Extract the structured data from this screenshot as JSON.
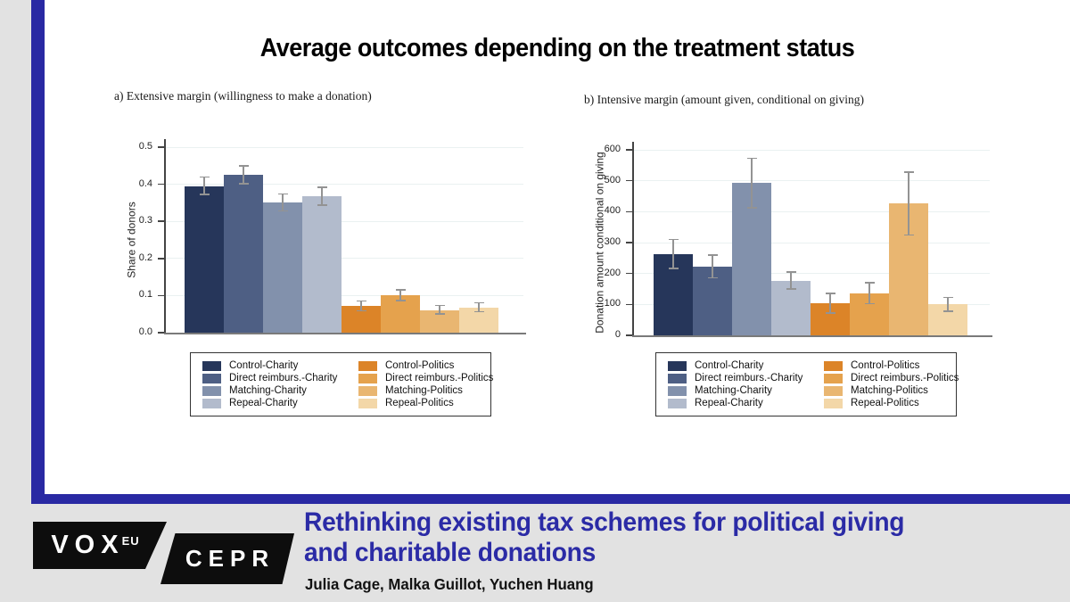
{
  "page": {
    "main_title": "Average outcomes depending on the treatment status"
  },
  "colors": {
    "frame_blue": "#2929a3",
    "footer_bg": "#e2e2e2",
    "article_title_blue": "#2b2ba6",
    "error_bar_gray": "#939393",
    "charity_palette": [
      "#26365a",
      "#4e5f84",
      "#8291ac",
      "#b2bbcc"
    ],
    "politics_palette": [
      "#dc8428",
      "#e5a24d",
      "#e9b671",
      "#f3d7a8"
    ]
  },
  "legend": {
    "items": [
      {
        "label": "Control-Charity",
        "color": "#26365a"
      },
      {
        "label": "Direct reimburs.-Charity",
        "color": "#4e5f84"
      },
      {
        "label": "Matching-Charity",
        "color": "#8291ac"
      },
      {
        "label": "Repeal-Charity",
        "color": "#b2bbcc"
      },
      {
        "label": "Control-Politics",
        "color": "#dc8428"
      },
      {
        "label": "Direct reimburs.-Politics",
        "color": "#e5a24d"
      },
      {
        "label": "Matching-Politics",
        "color": "#e9b671"
      },
      {
        "label": "Repeal-Politics",
        "color": "#f3d7a8"
      }
    ]
  },
  "chart_data": [
    {
      "type": "bar",
      "subtitle": "a) Extensive margin (willingness to make a donation)",
      "ylabel": "Share of donors",
      "xlabel": "",
      "ylim": [
        0,
        0.5
      ],
      "grid": true,
      "legend_position": "bottom",
      "ytick_values": [
        0,
        0.1,
        0.2,
        0.3,
        0.4,
        0.5
      ],
      "ytick_labels": [
        "0.0",
        "0.1",
        "0.2",
        "0.3",
        "0.4",
        "0.5"
      ],
      "categories": [
        "Control-Charity",
        "Direct reimburs.-Charity",
        "Matching-Charity",
        "Repeal-Charity",
        "Control-Politics",
        "Direct reimburs.-Politics",
        "Matching-Politics",
        "Repeal-Politics"
      ],
      "values": [
        0.395,
        0.425,
        0.351,
        0.368,
        0.071,
        0.101,
        0.061,
        0.068
      ],
      "ci_low": [
        0.372,
        0.401,
        0.328,
        0.344,
        0.059,
        0.087,
        0.05,
        0.056
      ],
      "ci_high": [
        0.42,
        0.449,
        0.374,
        0.392,
        0.085,
        0.115,
        0.073,
        0.08
      ],
      "bar_colors": [
        "#26365a",
        "#4e5f84",
        "#8291ac",
        "#b2bbcc",
        "#dc8428",
        "#e5a24d",
        "#e9b671",
        "#f3d7a8"
      ]
    },
    {
      "type": "bar",
      "subtitle": "b) Intensive margin (amount given, conditional on giving)",
      "ylabel": "Donation amount conditional on giving",
      "xlabel": "",
      "ylim": [
        0,
        600
      ],
      "grid": true,
      "legend_position": "bottom",
      "ytick_values": [
        0,
        100,
        200,
        300,
        400,
        500,
        600
      ],
      "ytick_labels": [
        "0",
        "100",
        "200",
        "300",
        "400",
        "500",
        "600"
      ],
      "categories": [
        "Control-Charity",
        "Direct reimburs.-Charity",
        "Matching-Charity",
        "Repeal-Charity",
        "Control-Politics",
        "Direct reimburs.-Politics",
        "Matching-Politics",
        "Repeal-Politics"
      ],
      "values": [
        263,
        222,
        492,
        177,
        103,
        136,
        426,
        100
      ],
      "ci_low": [
        217,
        186,
        413,
        150,
        72,
        103,
        325,
        78
      ],
      "ci_high": [
        310,
        260,
        572,
        205,
        135,
        170,
        528,
        122
      ],
      "bar_colors": [
        "#26365a",
        "#4e5f84",
        "#8291ac",
        "#b2bbcc",
        "#dc8428",
        "#e5a24d",
        "#e9b671",
        "#f3d7a8"
      ]
    }
  ],
  "footer": {
    "logo": {
      "vox": "VOX",
      "vox_sup": "EU",
      "cepr": "CEPR"
    },
    "article_title_line1": "Rethinking existing tax schemes for political giving",
    "article_title_line2": "and charitable donations",
    "authors": "Julia Cage, Malka Guillot, Yuchen Huang"
  }
}
